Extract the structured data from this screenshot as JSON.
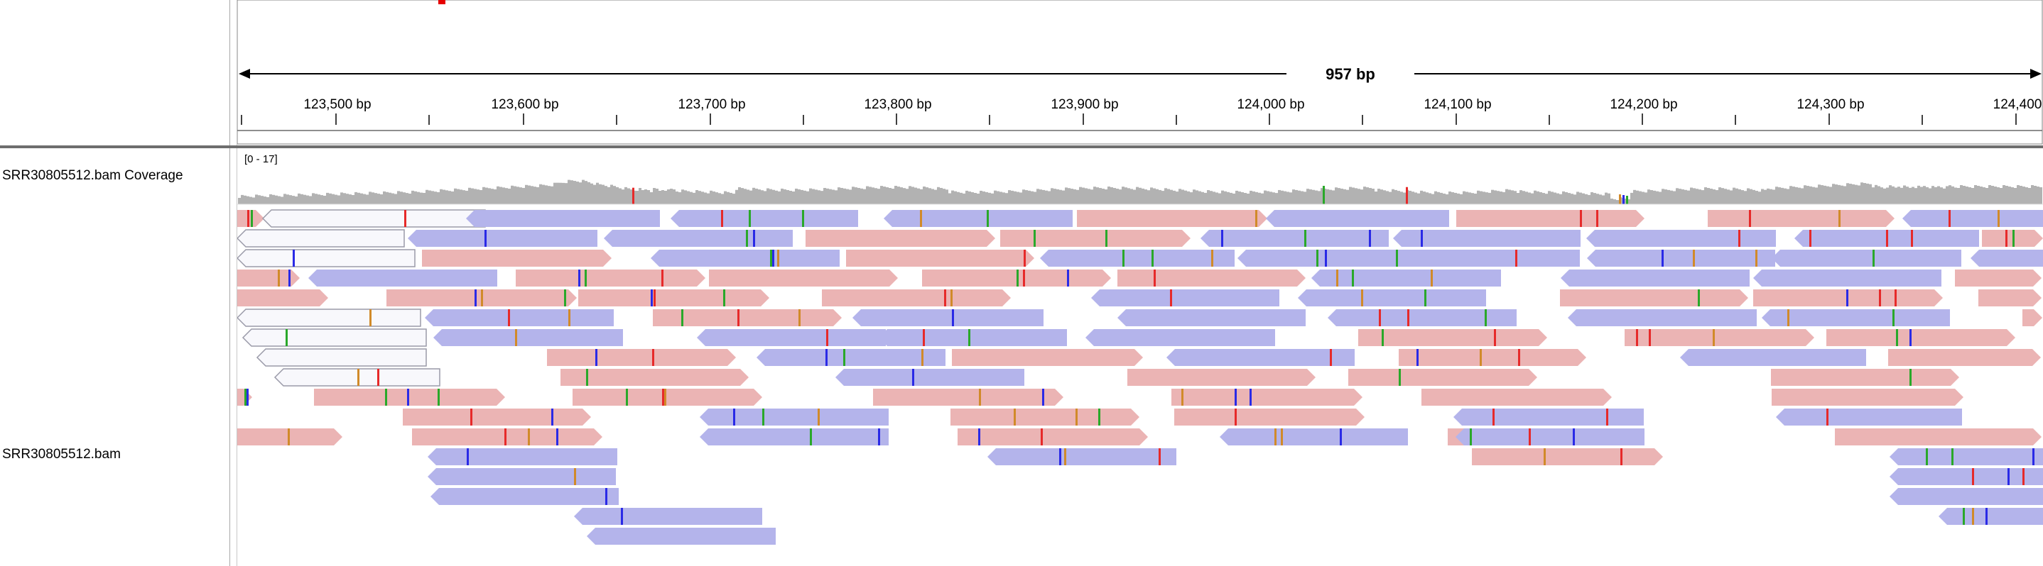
{
  "ruler": {
    "span_label": "957 bp",
    "tick_labels": [
      "123,500 bp",
      "123,600 bp",
      "123,700 bp",
      "123,800 bp",
      "123,900 bp",
      "124,000 bp",
      "124,100 bp",
      "124,200 bp",
      "124,300 bp",
      "124,400"
    ]
  },
  "tracks": {
    "coverage_name": "SRR30805512.bam Coverage",
    "alignment_name": "SRR30805512.bam",
    "coverage_range": "[0 - 17]"
  },
  "colors": {
    "forward_read": "#ebb4b4",
    "reverse_read": "#b4b4eb",
    "clipped_read": "#f8f8fc",
    "coverage": "#b2b2b2",
    "mismatch_A": "#2aa82a",
    "mismatch_C": "#2a2ae6",
    "mismatch_G": "#d18a2a",
    "mismatch_T": "#e62a2a",
    "viewport_marker": "#e60000"
  }
}
